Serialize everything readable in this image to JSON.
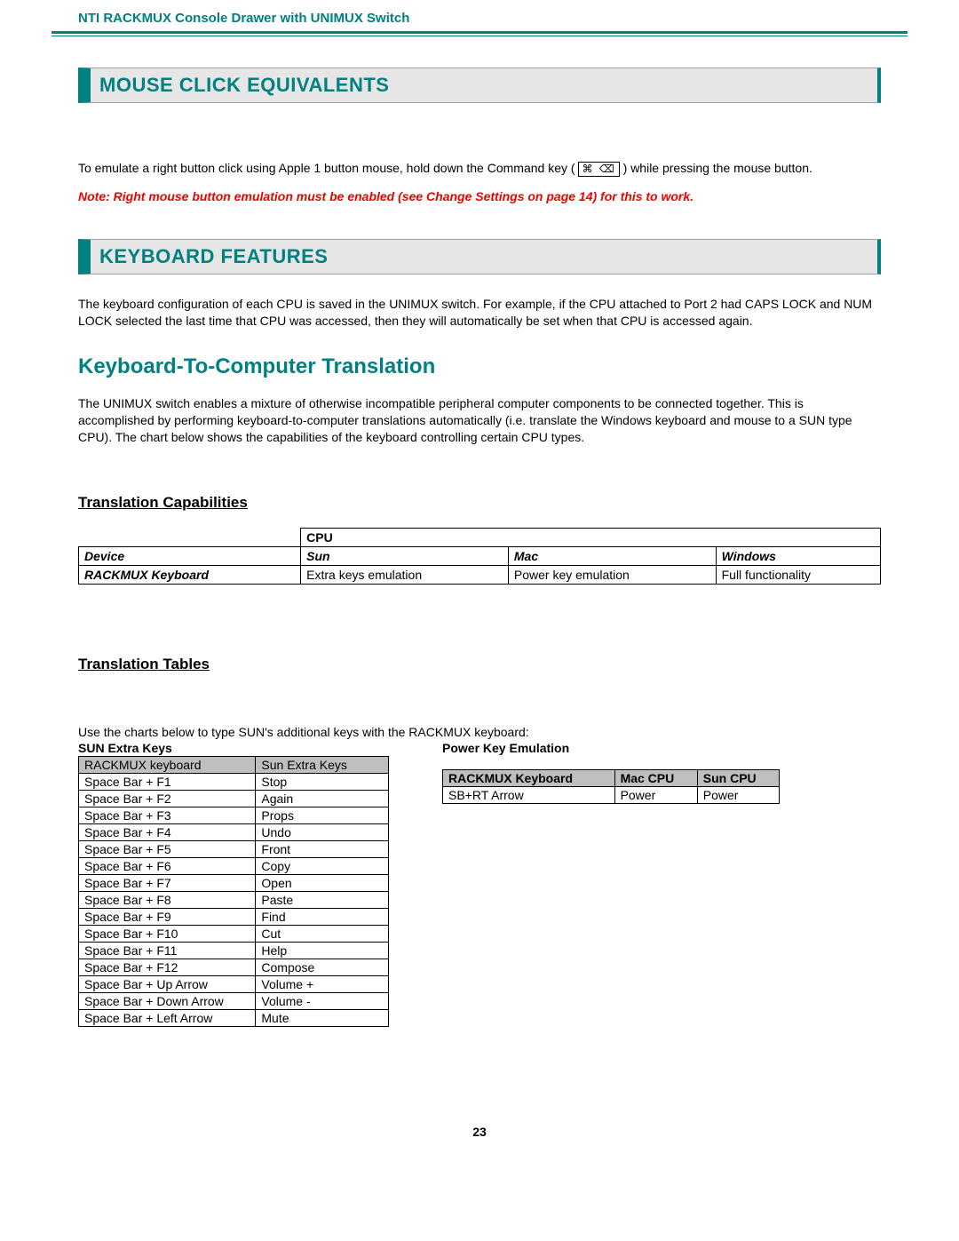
{
  "colors": {
    "accent": "#008080",
    "banner_bg": "#e6e6e6",
    "note": "#ee0000",
    "table_header_bg": "#bfbfbf",
    "text": "#000000",
    "background": "#ffffff"
  },
  "typography": {
    "body_fontsize": 14,
    "banner_title_fontsize": 22,
    "subsection_title_fontsize": 24,
    "subheading_fontsize": 17,
    "font_family": "Arial"
  },
  "header": {
    "title": "NTI RACKMUX Console Drawer with UNIMUX Switch"
  },
  "section1": {
    "title": "MOUSE CLICK EQUIVALENTS",
    "body_pre": "To emulate a right button click using Apple 1 button mouse, hold down the Command key ( ",
    "icon_glyph": "⌘ ⌫",
    "body_post": " ) while pressing the mouse button.",
    "note": "Note: Right mouse button emulation must be enabled (see Change Settings on page 14) for this to work."
  },
  "section2": {
    "title": "KEYBOARD FEATURES",
    "body": "The keyboard configuration of each CPU is saved in the UNIMUX switch.  For example, if the CPU attached to Port 2 had CAPS LOCK and NUM LOCK selected the last time that CPU was accessed, then they will automatically be set when that CPU is accessed again."
  },
  "subsection": {
    "title": "Keyboard-To-Computer Translation",
    "body": "The UNIMUX switch enables a mixture of otherwise incompatible peripheral computer components to be connected together. This is accomplished by performing keyboard-to-computer translations automatically (i.e. translate the Windows keyboard and mouse to a SUN type CPU). The chart below shows the capabilities of the keyboard controlling certain CPU types."
  },
  "capabilities": {
    "heading": "Translation Capabilities",
    "cpu_label": "CPU",
    "device_label": "Device",
    "cols": [
      "Sun",
      "Mac",
      "Windows"
    ],
    "row_label": "RACKMUX Keyboard",
    "row_values": [
      "Extra keys emulation",
      "Power key emulation",
      "Full functionality"
    ]
  },
  "translation_tables": {
    "heading": "Translation Tables",
    "intro": "Use the charts below to type SUN's additional keys with the RACKMUX keyboard:"
  },
  "sun_table": {
    "caption": "SUN Extra Keys",
    "headers": [
      "RACKMUX keyboard",
      "Sun Extra Keys"
    ],
    "rows": [
      [
        "Space Bar + F1",
        "Stop"
      ],
      [
        "Space Bar + F2",
        "Again"
      ],
      [
        "Space Bar + F3",
        "Props"
      ],
      [
        "Space Bar + F4",
        "Undo"
      ],
      [
        "Space Bar + F5",
        "Front"
      ],
      [
        "Space Bar + F6",
        "Copy"
      ],
      [
        "Space Bar + F7",
        "Open"
      ],
      [
        "Space Bar + F8",
        "Paste"
      ],
      [
        "Space Bar + F9",
        "Find"
      ],
      [
        "Space Bar + F10",
        "Cut"
      ],
      [
        "Space Bar + F11",
        "Help"
      ],
      [
        "Space Bar + F12",
        "Compose"
      ],
      [
        "Space Bar + Up Arrow",
        "Volume +"
      ],
      [
        "Space Bar + Down Arrow",
        "Volume -"
      ],
      [
        "Space Bar + Left Arrow",
        "Mute"
      ]
    ]
  },
  "power_table": {
    "caption": "Power Key Emulation",
    "headers": [
      "RACKMUX Keyboard",
      "Mac CPU",
      "Sun CPU"
    ],
    "rows": [
      [
        "SB+RT Arrow",
        "Power",
        "Power"
      ]
    ]
  },
  "page_number": "23"
}
